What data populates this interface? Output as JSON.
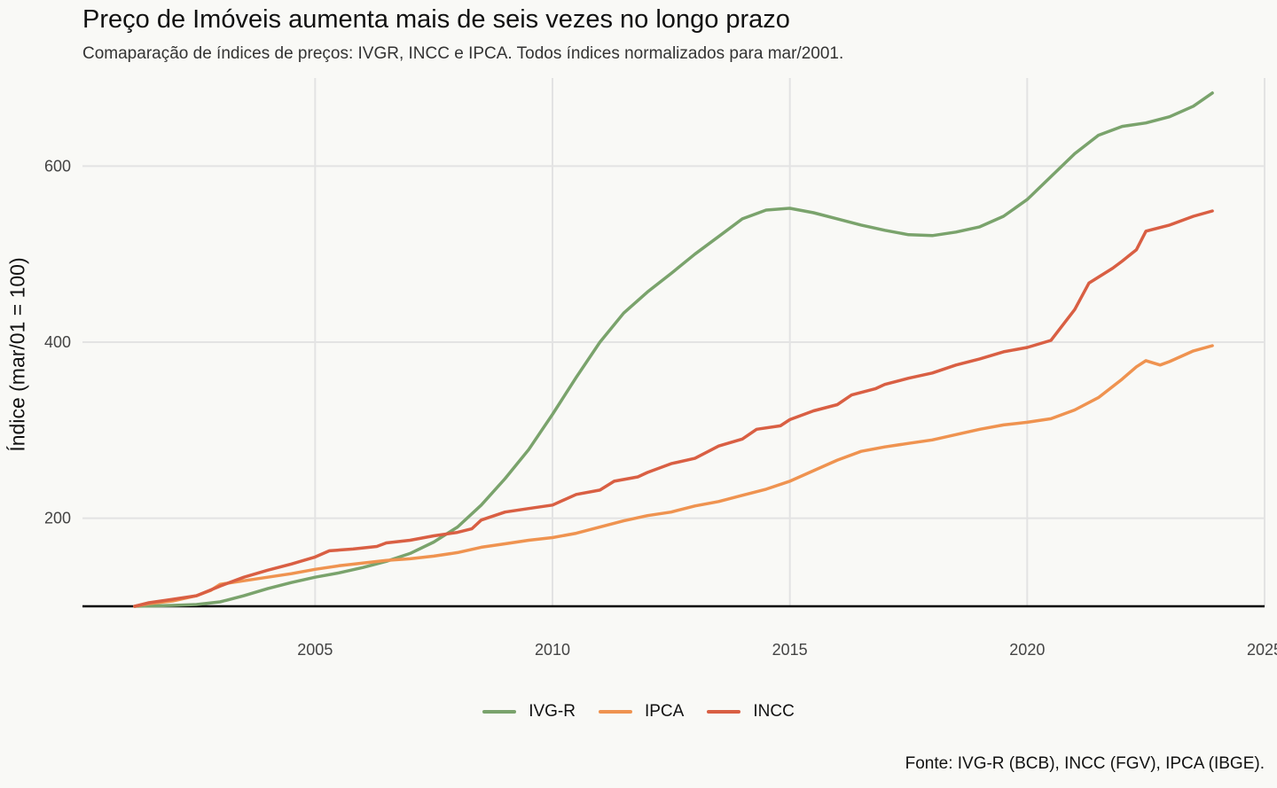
{
  "chart_data": {
    "type": "line",
    "title": "Preço de Imóveis aumenta mais de seis vezes no longo prazo",
    "subtitle": "Comaparação de índices de preços: IVGR, INCC e IPCA. Todos índices normalizados para mar/2001.",
    "caption": "Fonte: IVG-R (BCB), INCC (FGV), IPCA (IBGE).",
    "ylabel": "Índice (mar/01 = 100)",
    "xlabel": "",
    "xlim": [
      2000.1,
      2025
    ],
    "ylim": [
      100,
      700
    ],
    "x_ticks": [
      2005,
      2010,
      2015,
      2020,
      2025
    ],
    "y_ticks": [
      200,
      400,
      600
    ],
    "grid": true,
    "baseline": 100,
    "legend_position": "bottom",
    "series": [
      {
        "name": "IVG-R",
        "color": "#7aa36c",
        "points": [
          [
            2001.2,
            100
          ],
          [
            2002.0,
            101
          ],
          [
            2002.5,
            102
          ],
          [
            2003.0,
            105
          ],
          [
            2003.5,
            112
          ],
          [
            2004.0,
            120
          ],
          [
            2004.5,
            127
          ],
          [
            2005.0,
            133
          ],
          [
            2005.5,
            138
          ],
          [
            2006.0,
            144
          ],
          [
            2006.5,
            151
          ],
          [
            2007.0,
            160
          ],
          [
            2007.5,
            173
          ],
          [
            2008.0,
            190
          ],
          [
            2008.5,
            215
          ],
          [
            2009.0,
            245
          ],
          [
            2009.5,
            278
          ],
          [
            2010.0,
            318
          ],
          [
            2010.5,
            360
          ],
          [
            2011.0,
            400
          ],
          [
            2011.5,
            433
          ],
          [
            2012.0,
            457
          ],
          [
            2012.5,
            478
          ],
          [
            2013.0,
            500
          ],
          [
            2013.5,
            520
          ],
          [
            2014.0,
            540
          ],
          [
            2014.5,
            550
          ],
          [
            2015.0,
            552
          ],
          [
            2015.5,
            547
          ],
          [
            2016.0,
            540
          ],
          [
            2016.5,
            533
          ],
          [
            2017.0,
            527
          ],
          [
            2017.5,
            522
          ],
          [
            2018.0,
            521
          ],
          [
            2018.5,
            525
          ],
          [
            2019.0,
            531
          ],
          [
            2019.5,
            543
          ],
          [
            2020.0,
            562
          ],
          [
            2020.5,
            588
          ],
          [
            2021.0,
            614
          ],
          [
            2021.5,
            635
          ],
          [
            2022.0,
            645
          ],
          [
            2022.5,
            649
          ],
          [
            2023.0,
            656
          ],
          [
            2023.5,
            668
          ],
          [
            2023.9,
            683
          ]
        ]
      },
      {
        "name": "IPCA",
        "color": "#ef9350",
        "points": [
          [
            2001.2,
            100
          ],
          [
            2001.5,
            103
          ],
          [
            2002.0,
            106
          ],
          [
            2002.5,
            112
          ],
          [
            2002.8,
            118
          ],
          [
            2003.0,
            125
          ],
          [
            2003.5,
            129
          ],
          [
            2004.0,
            133
          ],
          [
            2004.5,
            137
          ],
          [
            2005.0,
            142
          ],
          [
            2005.5,
            146
          ],
          [
            2006.0,
            149
          ],
          [
            2006.5,
            152
          ],
          [
            2007.0,
            154
          ],
          [
            2007.5,
            157
          ],
          [
            2008.0,
            161
          ],
          [
            2008.5,
            167
          ],
          [
            2009.0,
            171
          ],
          [
            2009.5,
            175
          ],
          [
            2010.0,
            178
          ],
          [
            2010.5,
            183
          ],
          [
            2011.0,
            190
          ],
          [
            2011.5,
            197
          ],
          [
            2012.0,
            203
          ],
          [
            2012.5,
            207
          ],
          [
            2013.0,
            214
          ],
          [
            2013.5,
            219
          ],
          [
            2014.0,
            226
          ],
          [
            2014.5,
            233
          ],
          [
            2015.0,
            242
          ],
          [
            2015.5,
            254
          ],
          [
            2016.0,
            266
          ],
          [
            2016.5,
            276
          ],
          [
            2017.0,
            281
          ],
          [
            2017.5,
            285
          ],
          [
            2018.0,
            289
          ],
          [
            2018.5,
            295
          ],
          [
            2019.0,
            301
          ],
          [
            2019.5,
            306
          ],
          [
            2020.0,
            309
          ],
          [
            2020.5,
            313
          ],
          [
            2021.0,
            323
          ],
          [
            2021.5,
            337
          ],
          [
            2022.0,
            358
          ],
          [
            2022.3,
            372
          ],
          [
            2022.5,
            379
          ],
          [
            2022.8,
            374
          ],
          [
            2023.0,
            378
          ],
          [
            2023.5,
            390
          ],
          [
            2023.9,
            396
          ]
        ]
      },
      {
        "name": "INCC",
        "color": "#d95f43",
        "points": [
          [
            2001.2,
            100
          ],
          [
            2001.5,
            104
          ],
          [
            2002.0,
            108
          ],
          [
            2002.5,
            112
          ],
          [
            2003.0,
            123
          ],
          [
            2003.5,
            133
          ],
          [
            2004.0,
            141
          ],
          [
            2004.5,
            148
          ],
          [
            2005.0,
            156
          ],
          [
            2005.3,
            163
          ],
          [
            2005.8,
            165
          ],
          [
            2006.3,
            168
          ],
          [
            2006.5,
            172
          ],
          [
            2007.0,
            175
          ],
          [
            2007.5,
            180
          ],
          [
            2008.0,
            184
          ],
          [
            2008.3,
            188
          ],
          [
            2008.5,
            198
          ],
          [
            2009.0,
            207
          ],
          [
            2009.5,
            211
          ],
          [
            2010.0,
            215
          ],
          [
            2010.5,
            227
          ],
          [
            2011.0,
            232
          ],
          [
            2011.3,
            242
          ],
          [
            2011.8,
            247
          ],
          [
            2012.0,
            252
          ],
          [
            2012.5,
            262
          ],
          [
            2013.0,
            268
          ],
          [
            2013.5,
            282
          ],
          [
            2014.0,
            290
          ],
          [
            2014.3,
            301
          ],
          [
            2014.8,
            305
          ],
          [
            2015.0,
            312
          ],
          [
            2015.5,
            322
          ],
          [
            2016.0,
            329
          ],
          [
            2016.3,
            340
          ],
          [
            2016.8,
            347
          ],
          [
            2017.0,
            352
          ],
          [
            2017.5,
            359
          ],
          [
            2018.0,
            365
          ],
          [
            2018.5,
            374
          ],
          [
            2019.0,
            381
          ],
          [
            2019.5,
            389
          ],
          [
            2020.0,
            394
          ],
          [
            2020.5,
            402
          ],
          [
            2021.0,
            437
          ],
          [
            2021.3,
            467
          ],
          [
            2021.8,
            484
          ],
          [
            2022.0,
            492
          ],
          [
            2022.3,
            505
          ],
          [
            2022.5,
            526
          ],
          [
            2023.0,
            533
          ],
          [
            2023.5,
            543
          ],
          [
            2023.9,
            549
          ]
        ]
      }
    ]
  }
}
